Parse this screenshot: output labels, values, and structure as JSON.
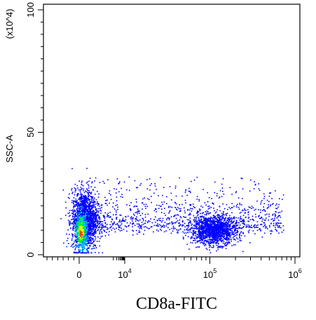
{
  "chart_data": {
    "type": "scatter",
    "xlabel": "CD8a-FITC",
    "ylabel": "SSC-A",
    "y_multiplier_label": "(x10^4)",
    "y_ticks": [
      {
        "value": 0,
        "label": "0"
      },
      {
        "value": 50,
        "label": "50"
      },
      {
        "value": 100,
        "label": "100"
      }
    ],
    "x_ticks": [
      {
        "value": 0,
        "label": "0"
      },
      {
        "value": 10000,
        "base": "10",
        "exp": "4"
      },
      {
        "value": 100000,
        "base": "10",
        "exp": "5"
      },
      {
        "value": 1000000,
        "base": "10",
        "exp": "6"
      }
    ],
    "x_scale": "biexponential",
    "ylim": [
      0,
      100
    ],
    "xlim": [
      -2000,
      1000000
    ],
    "grid": false,
    "populations": [
      {
        "name": "",
        "x_center": 300,
        "y_center": 10,
        "note": "dense core near origin"
      },
      {
        "name": "",
        "x_center": 1200,
        "y_center": 15
      },
      {
        "name": "",
        "x_center": 120000,
        "y_center": 10
      }
    ],
    "colors": {
      "low": "#0000ff",
      "mid": "#00c8ff",
      "high1": "#00ff00",
      "high2": "#ffff00",
      "peak": "#ff4000"
    }
  }
}
